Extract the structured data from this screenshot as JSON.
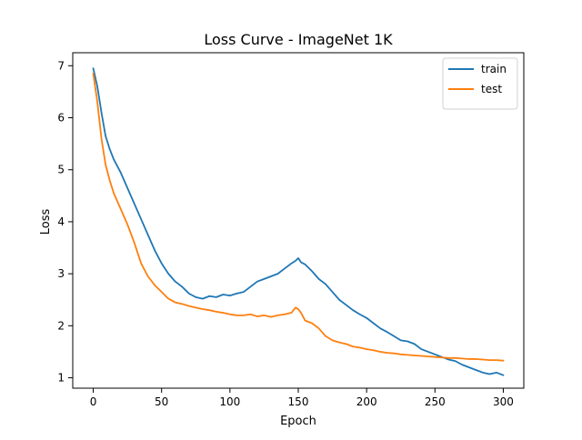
{
  "chart_data": {
    "type": "line",
    "title": "Loss Curve - ImageNet 1K",
    "xlabel": "Epoch",
    "ylabel": "Loss",
    "xlim": [
      -15,
      315
    ],
    "ylim": [
      0.8,
      7.25
    ],
    "xticks": [
      0,
      50,
      100,
      150,
      200,
      250,
      300
    ],
    "yticks": [
      1,
      2,
      3,
      4,
      5,
      6,
      7
    ],
    "grid": false,
    "legend_position": "top-right",
    "series": [
      {
        "name": "train",
        "color": "#1f77b4",
        "x": [
          0,
          3,
          6,
          9,
          12,
          15,
          20,
          25,
          30,
          35,
          40,
          45,
          50,
          55,
          60,
          65,
          70,
          75,
          80,
          85,
          90,
          95,
          100,
          105,
          110,
          115,
          120,
          125,
          130,
          135,
          140,
          145,
          148,
          150,
          152,
          155,
          160,
          165,
          170,
          175,
          180,
          185,
          190,
          195,
          200,
          205,
          210,
          215,
          220,
          225,
          230,
          235,
          240,
          245,
          250,
          255,
          260,
          265,
          270,
          275,
          280,
          285,
          290,
          295,
          300
        ],
        "y": [
          6.95,
          6.6,
          6.1,
          5.65,
          5.4,
          5.2,
          4.95,
          4.65,
          4.35,
          4.05,
          3.75,
          3.45,
          3.2,
          3.0,
          2.85,
          2.75,
          2.62,
          2.55,
          2.52,
          2.57,
          2.55,
          2.6,
          2.58,
          2.62,
          2.65,
          2.75,
          2.85,
          2.9,
          2.95,
          3.0,
          3.1,
          3.2,
          3.25,
          3.3,
          3.22,
          3.18,
          3.05,
          2.9,
          2.8,
          2.65,
          2.5,
          2.4,
          2.3,
          2.22,
          2.15,
          2.05,
          1.95,
          1.88,
          1.8,
          1.72,
          1.7,
          1.65,
          1.55,
          1.5,
          1.45,
          1.4,
          1.35,
          1.32,
          1.25,
          1.2,
          1.15,
          1.1,
          1.07,
          1.1,
          1.05
        ]
      },
      {
        "name": "test",
        "color": "#ff7f0e",
        "x": [
          0,
          3,
          6,
          9,
          12,
          15,
          20,
          25,
          30,
          35,
          40,
          45,
          50,
          55,
          60,
          65,
          70,
          75,
          80,
          85,
          90,
          95,
          100,
          105,
          110,
          115,
          120,
          125,
          130,
          135,
          140,
          145,
          148,
          150,
          152,
          155,
          160,
          165,
          170,
          175,
          180,
          185,
          190,
          195,
          200,
          205,
          210,
          215,
          220,
          225,
          230,
          235,
          240,
          245,
          250,
          255,
          260,
          265,
          270,
          275,
          280,
          285,
          290,
          295,
          300
        ],
        "y": [
          6.85,
          6.3,
          5.6,
          5.1,
          4.8,
          4.55,
          4.25,
          3.95,
          3.6,
          3.2,
          2.95,
          2.78,
          2.65,
          2.52,
          2.45,
          2.42,
          2.38,
          2.35,
          2.32,
          2.3,
          2.27,
          2.25,
          2.22,
          2.2,
          2.2,
          2.22,
          2.18,
          2.2,
          2.17,
          2.2,
          2.22,
          2.25,
          2.35,
          2.32,
          2.25,
          2.1,
          2.05,
          1.95,
          1.8,
          1.72,
          1.68,
          1.65,
          1.6,
          1.58,
          1.55,
          1.53,
          1.5,
          1.48,
          1.47,
          1.45,
          1.44,
          1.43,
          1.42,
          1.41,
          1.4,
          1.39,
          1.38,
          1.38,
          1.37,
          1.36,
          1.36,
          1.35,
          1.34,
          1.34,
          1.33
        ]
      }
    ]
  }
}
